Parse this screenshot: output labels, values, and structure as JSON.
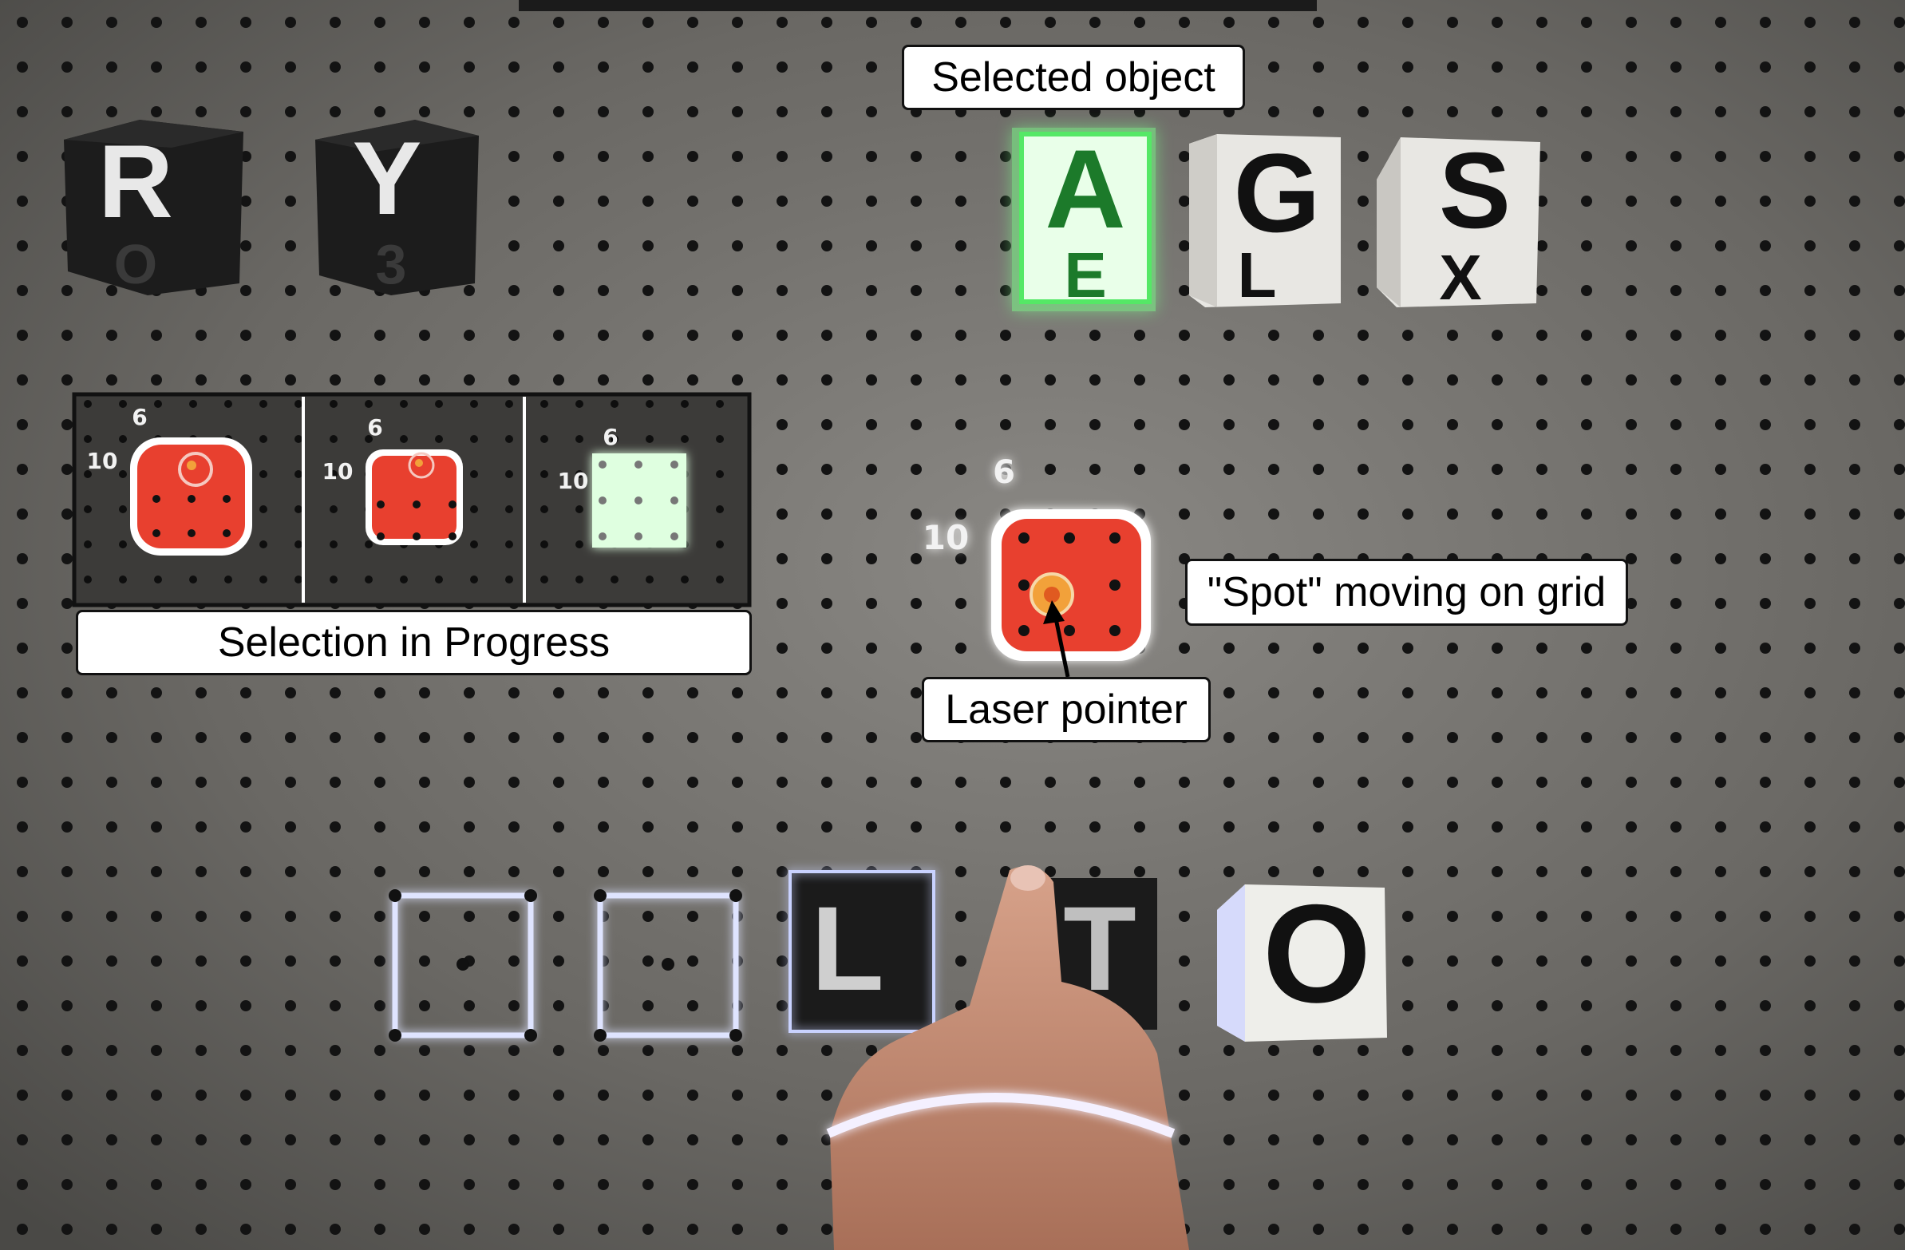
{
  "callouts": {
    "selected_object": "Selected object",
    "selection_in_progress": "Selection in Progress",
    "spot_moving": "\"Spot\" moving on grid",
    "laser_pointer": "Laser pointer"
  },
  "dark_cubes": [
    {
      "top": "R",
      "bottom": "O"
    },
    {
      "top": "Y",
      "bottom": "3"
    }
  ],
  "white_cubes": [
    {
      "top": "A",
      "bottom": "E",
      "selected": true
    },
    {
      "top": "G",
      "bottom": "L",
      "selected": false
    },
    {
      "top": "S",
      "bottom": "X",
      "selected": false
    }
  ],
  "bottom_row": {
    "placed_letters": [
      "L",
      "T"
    ],
    "white_cube_letter": "O"
  },
  "grid_coords": {
    "x": "6",
    "y": "10"
  },
  "inset_panels": [
    {
      "x": "6",
      "y": "10"
    },
    {
      "x": "6",
      "y": "10"
    },
    {
      "x": "6",
      "y": "10"
    }
  ],
  "colors": {
    "board": "#6d6b67",
    "hole": "#111111",
    "spot": "#e8402f",
    "selected_glow": "#7cff8a",
    "projected_outline": "#cfd8ff"
  }
}
